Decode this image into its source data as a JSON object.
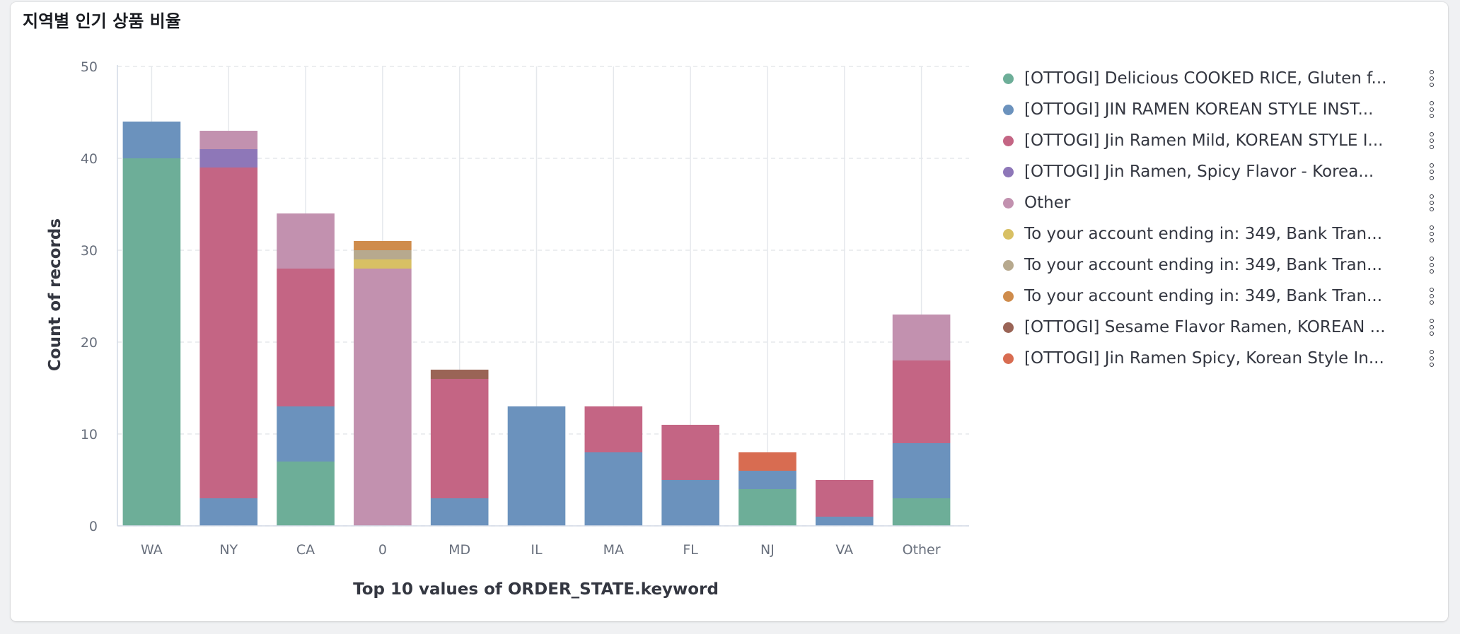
{
  "panel": {
    "title": "지역별 인기 상품 비율"
  },
  "colors": {
    "green": "#6dae98",
    "blue": "#6b92bd",
    "red": "#c46584",
    "purple": "#8e77b8",
    "pink": "#c291af",
    "yellow": "#d8c064",
    "tan": "#b7a98e",
    "orange": "#cf8c4c",
    "brown": "#9a6456",
    "coral": "#d86c51",
    "gridline": "#e5e8ec"
  },
  "legend": {
    "items": [
      {
        "label": "[OTTOGI] Delicious COOKED RICE, Gluten f...",
        "color": "#6dae98",
        "action_icon": "vertical-dots-icon"
      },
      {
        "label": "[OTTOGI] JIN RAMEN KOREAN STYLE INST...",
        "color": "#6b92bd",
        "action_icon": "vertical-dots-icon"
      },
      {
        "label": "[OTTOGI] Jin Ramen Mild, KOREAN STYLE I...",
        "color": "#c46584",
        "action_icon": "vertical-dots-icon"
      },
      {
        "label": "[OTTOGI] Jin Ramen, Spicy Flavor - Korea...",
        "color": "#8e77b8",
        "action_icon": "vertical-dots-icon"
      },
      {
        "label": "Other",
        "color": "#c291af",
        "action_icon": "vertical-dots-icon"
      },
      {
        "label": "To your account ending in: 349, Bank Tran...",
        "color": "#d8c064",
        "action_icon": "vertical-dots-icon"
      },
      {
        "label": "To your account ending in: 349, Bank Tran...",
        "color": "#b7a98e",
        "action_icon": "vertical-dots-icon"
      },
      {
        "label": "To your account ending in: 349, Bank Tran...",
        "color": "#cf8c4c",
        "action_icon": "vertical-dots-icon"
      },
      {
        "label": "[OTTOGI] Sesame Flavor Ramen, KOREAN ...",
        "color": "#9a6456",
        "action_icon": "vertical-dots-icon"
      },
      {
        "label": "[OTTOGI] Jin Ramen Spicy, Korean Style In...",
        "color": "#d86c51",
        "action_icon": "vertical-dots-icon"
      }
    ]
  },
  "chart_data": {
    "type": "bar",
    "stacked": true,
    "xlabel": "Top 10 values of ORDER_STATE.keyword",
    "ylabel": "Count of records",
    "ylim": [
      0,
      50
    ],
    "yticks": [
      0,
      10,
      20,
      30,
      40,
      50
    ],
    "grid": true,
    "legend_position": "right",
    "categories": [
      "WA",
      "NY",
      "CA",
      "0",
      "MD",
      "IL",
      "MA",
      "FL",
      "NJ",
      "VA",
      "Other"
    ],
    "series": [
      {
        "name": "[OTTOGI] Delicious COOKED RICE, Gluten f...",
        "color": "#6dae98",
        "values": [
          40,
          0,
          7,
          0,
          0,
          0,
          0,
          0,
          4,
          0,
          3
        ]
      },
      {
        "name": "[OTTOGI] JIN RAMEN KOREAN STYLE INST...",
        "color": "#6b92bd",
        "values": [
          4,
          3,
          6,
          0,
          3,
          13,
          8,
          5,
          2,
          1,
          6
        ]
      },
      {
        "name": "[OTTOGI] Jin Ramen Mild, KOREAN STYLE I...",
        "color": "#c46584",
        "values": [
          0,
          36,
          15,
          0,
          13,
          0,
          5,
          6,
          0,
          4,
          9
        ]
      },
      {
        "name": "[OTTOGI] Jin Ramen, Spicy Flavor - Korea...",
        "color": "#8e77b8",
        "values": [
          0,
          2,
          0,
          0,
          0,
          0,
          0,
          0,
          0,
          0,
          0
        ]
      },
      {
        "name": "Other",
        "color": "#c291af",
        "values": [
          0,
          2,
          6,
          28,
          0,
          0,
          0,
          0,
          0,
          0,
          5
        ]
      },
      {
        "name": "To your account ending in: 349, Bank Tran...",
        "color": "#d8c064",
        "values": [
          0,
          0,
          0,
          1,
          0,
          0,
          0,
          0,
          0,
          0,
          0
        ]
      },
      {
        "name": "To your account ending in: 349, Bank Tran...",
        "color": "#b7a98e",
        "values": [
          0,
          0,
          0,
          1,
          0,
          0,
          0,
          0,
          0,
          0,
          0
        ]
      },
      {
        "name": "To your account ending in: 349, Bank Tran...",
        "color": "#cf8c4c",
        "values": [
          0,
          0,
          0,
          1,
          0,
          0,
          0,
          0,
          0,
          0,
          0
        ]
      },
      {
        "name": "[OTTOGI] Sesame Flavor Ramen, KOREAN ...",
        "color": "#9a6456",
        "values": [
          0,
          0,
          0,
          0,
          1,
          0,
          0,
          0,
          0,
          0,
          0
        ]
      },
      {
        "name": "[OTTOGI] Jin Ramen Spicy, Korean Style In...",
        "color": "#d86c51",
        "values": [
          0,
          0,
          0,
          0,
          0,
          0,
          0,
          0,
          2,
          0,
          0
        ]
      }
    ]
  }
}
